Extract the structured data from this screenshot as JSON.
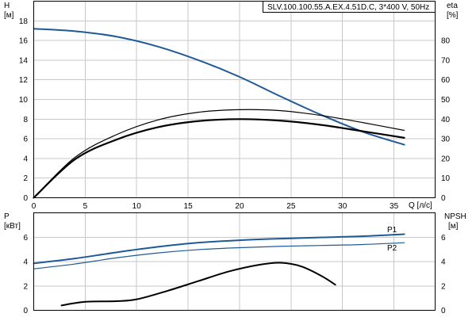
{
  "colors": {
    "head": "#1f5a96",
    "power": "#1f5a96",
    "eff": "#000000",
    "npsh": "#000000",
    "grid": "#c8c8c8"
  },
  "chart_data": [
    {
      "type": "line",
      "title": "SLV.100.100.55.A.EX.4.51D.C, 3*400 V, 50Hz",
      "xlabel": "Q [л/с]",
      "ylabel_left": [
        "H",
        "[м]"
      ],
      "ylabel_right": [
        "eta",
        "[%]"
      ],
      "xlim": [
        0,
        39
      ],
      "ylim_left": [
        0,
        20
      ],
      "ylim_right": [
        0,
        100
      ],
      "x_ticks": [
        "0",
        "5",
        "10",
        "15",
        "20",
        "25",
        "30",
        "35"
      ],
      "y_ticks_left": [
        "0",
        "2",
        "4",
        "6",
        "8",
        "10",
        "12",
        "14",
        "16",
        "18"
      ],
      "y_ticks_right": [
        "0",
        "10",
        "20",
        "30",
        "40",
        "50",
        "60",
        "70",
        "80"
      ],
      "grid": true,
      "series": [
        {
          "key": "head",
          "axis": "left",
          "width": 2,
          "color": "#1f5a96",
          "x": [
            0,
            4,
            8,
            12,
            16,
            20,
            24,
            28,
            32,
            36
          ],
          "y": [
            17.2,
            16.95,
            16.4,
            15.4,
            14.0,
            12.3,
            10.3,
            8.4,
            6.7,
            5.4
          ]
        },
        {
          "key": "eta_thin",
          "axis": "right",
          "width": 1.2,
          "color": "#000000",
          "x": [
            0,
            4,
            8,
            12,
            16,
            20,
            24,
            28,
            32,
            36
          ],
          "y": [
            0,
            20.5,
            32,
            39.5,
            43.5,
            44.8,
            44.3,
            41.8,
            38.2,
            34.3
          ]
        },
        {
          "key": "eta_thick",
          "axis": "right",
          "width": 2.2,
          "color": "#000000",
          "x": [
            0,
            4,
            8,
            12,
            16,
            20,
            24,
            28,
            32,
            36
          ],
          "y": [
            0,
            19.5,
            29.5,
            35.8,
            39.0,
            40.0,
            39.2,
            37.0,
            33.8,
            30.5
          ]
        }
      ]
    },
    {
      "type": "line",
      "xlabel": "",
      "ylabel_left": [
        "P",
        "[кВт]"
      ],
      "ylabel_right": [
        "NPSH",
        "[м]"
      ],
      "xlim": [
        0,
        39
      ],
      "ylim_left": [
        0,
        8
      ],
      "ylim_right": [
        0,
        8
      ],
      "y_ticks_left": [
        "0",
        "2",
        "4",
        "6"
      ],
      "y_ticks_right": [
        "0",
        "2",
        "4",
        "6"
      ],
      "grid": true,
      "series": [
        {
          "key": "p1",
          "name": "P1",
          "axis": "left",
          "width": 2,
          "color": "#1f5a96",
          "x": [
            0,
            4,
            8,
            12,
            16,
            20,
            24,
            28,
            32,
            36
          ],
          "y": [
            3.85,
            4.25,
            4.75,
            5.2,
            5.55,
            5.75,
            5.88,
            5.98,
            6.08,
            6.25
          ]
        },
        {
          "key": "p2",
          "name": "P2",
          "axis": "left",
          "width": 1.2,
          "color": "#1f5a96",
          "x": [
            0,
            4,
            8,
            12,
            16,
            20,
            24,
            28,
            32,
            36
          ],
          "y": [
            3.4,
            3.8,
            4.3,
            4.7,
            4.98,
            5.14,
            5.25,
            5.32,
            5.4,
            5.55
          ]
        },
        {
          "key": "npsh",
          "axis": "right",
          "width": 2,
          "color": "#000000",
          "x": [
            2.7,
            5,
            8,
            10,
            13,
            16,
            19,
            22,
            24,
            26,
            28,
            29.3
          ],
          "y": [
            0.4,
            0.7,
            0.75,
            0.9,
            1.6,
            2.4,
            3.2,
            3.75,
            3.9,
            3.6,
            2.8,
            2.1
          ]
        }
      ]
    }
  ]
}
